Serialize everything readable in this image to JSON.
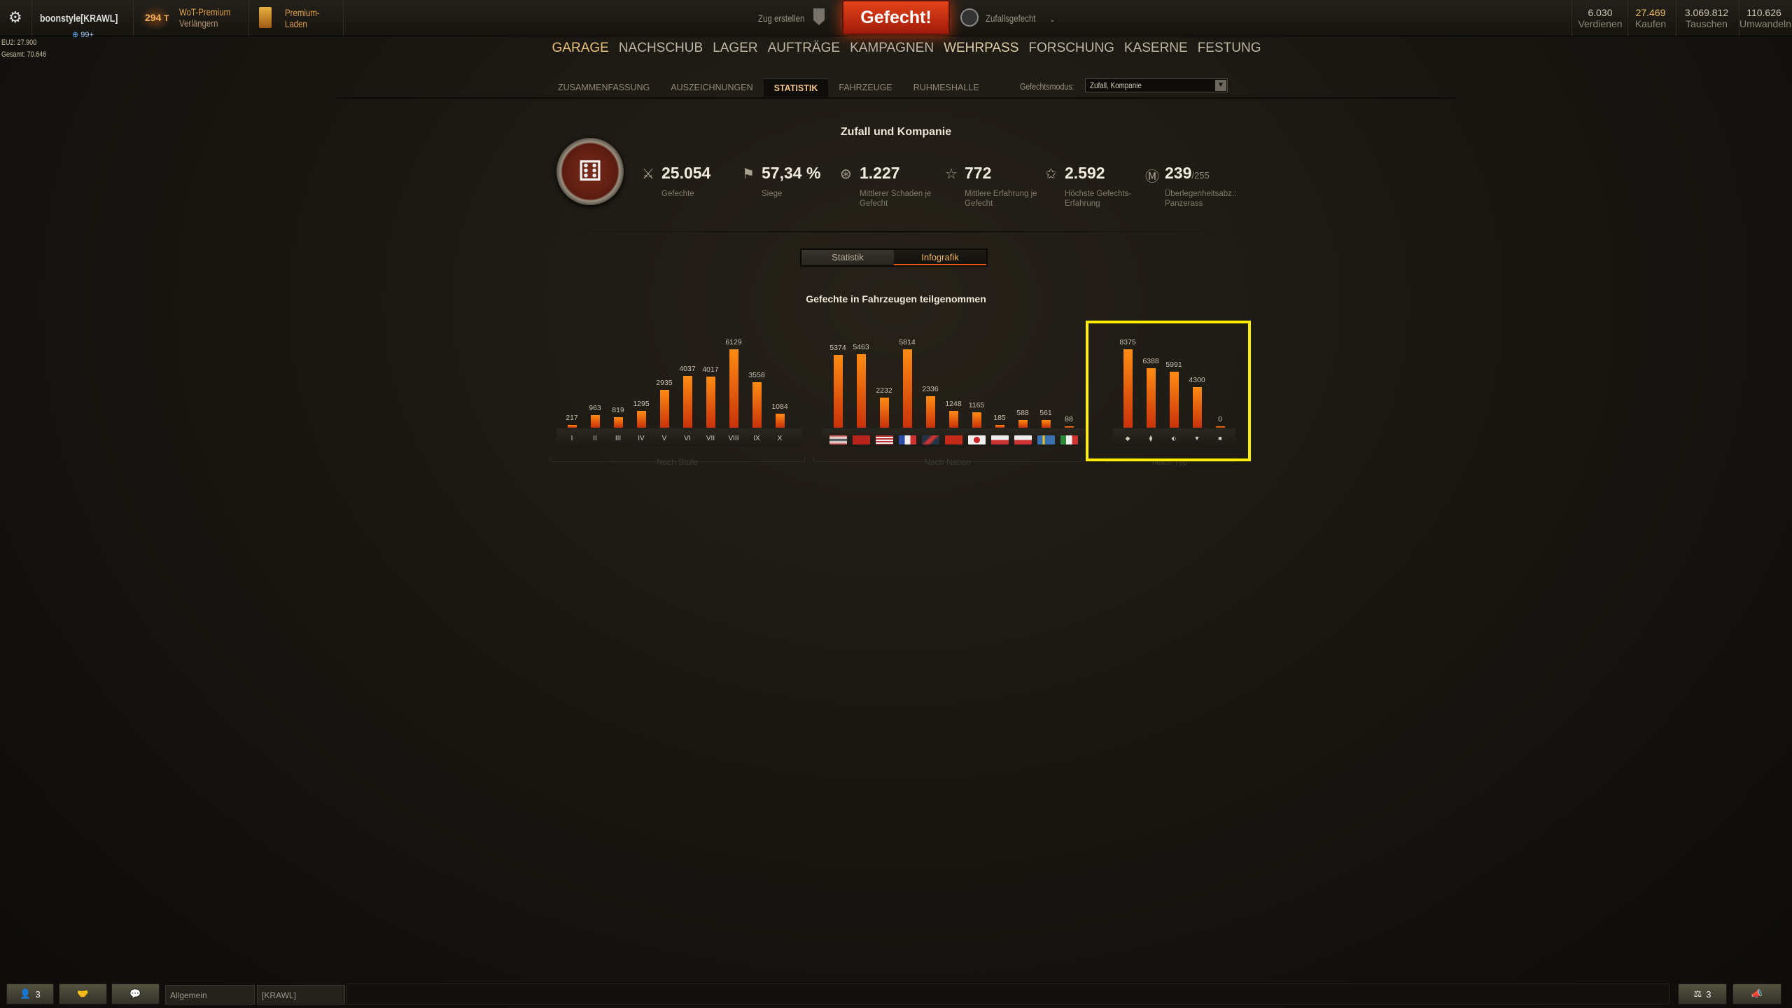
{
  "topbar": {
    "username": "boonstyle[KRAWL]",
    "invites": "99+",
    "premium_days": "294",
    "premium_unit": "T",
    "premium_label": "WoT-Premium",
    "premium_action": "Verlängern",
    "shop_label_1": "Premium-",
    "shop_label_2": "Laden",
    "platoon": "Zug erstellen",
    "battle_button": "Gefecht!",
    "battle_mode": "Zufallsgefecht",
    "currencies": [
      {
        "value": "6.030",
        "label": "Verdienen",
        "color": "#cfc8b4"
      },
      {
        "value": "27.469",
        "label": "Kaufen",
        "color": "#f0c060"
      },
      {
        "value": "3.069.812",
        "label": "Tauschen",
        "color": "#cfc8b4"
      },
      {
        "value": "110.626",
        "label": "Umwandeln",
        "color": "#cfc8b4"
      }
    ]
  },
  "server": {
    "line1": "EU2: 27.900",
    "line2": "Gesamt: 70.646"
  },
  "nav": [
    "GARAGE",
    "NACHSCHUB",
    "LAGER",
    "AUFTRÄGE",
    "KAMPAGNEN",
    "WEHRPASS",
    "FORSCHUNG",
    "KASERNE",
    "FESTUNG"
  ],
  "subtabs": [
    "ZUSAMMENFASSUNG",
    "AUSZEICHNUNGEN",
    "STATISTIK",
    "FAHRZEUGE",
    "RUHMESHALLE"
  ],
  "mode": {
    "label": "Gefechtsmodus:",
    "value": "Zufall, Kompanie"
  },
  "summary": {
    "title": "Zufall und Kompanie",
    "stats": [
      {
        "icon": "crossed-swords-icon",
        "value": "25.054",
        "label": "Gefechte"
      },
      {
        "icon": "flag-icon",
        "value": "57,34 %",
        "label": "Siege"
      },
      {
        "icon": "shell-icon",
        "value": "1.227",
        "label": "Mittlerer Schaden je Gefecht"
      },
      {
        "icon": "star-icon",
        "value": "772",
        "label": "Mittlere Erfahrung je Gefecht"
      },
      {
        "icon": "star-badge-icon",
        "value": "2.592",
        "label": "Höchste Gefechts-Erfahrung"
      },
      {
        "icon": "mastery-icon",
        "value": "239",
        "sub": "/255",
        "label": "Überlegenheitsabz.: Panzerass"
      }
    ]
  },
  "toggle": {
    "left": "Statistik",
    "right": "Infografik"
  },
  "chart_data": [
    {
      "type": "bar",
      "title": "Gefechte in Fahrzeugen teilgenommen",
      "xlabel": "Nach Stufe",
      "categories": [
        "I",
        "II",
        "III",
        "IV",
        "V",
        "VI",
        "VII",
        "VIII",
        "IX",
        "X"
      ],
      "values": [
        217,
        963,
        819,
        1295,
        2935,
        4037,
        4017,
        6129,
        3558,
        1084
      ]
    },
    {
      "type": "bar",
      "xlabel": "Nach Nation",
      "categories": [
        "germany",
        "ussr",
        "usa",
        "france",
        "uk",
        "china",
        "japan",
        "czech",
        "poland",
        "sweden",
        "italy"
      ],
      "values": [
        5374,
        5463,
        2232,
        5814,
        2336,
        1248,
        1165,
        185,
        588,
        561,
        88
      ]
    },
    {
      "type": "bar",
      "xlabel": "Nach Typ",
      "categories": [
        "light-tank",
        "medium-tank",
        "heavy-tank",
        "tank-destroyer",
        "spg"
      ],
      "values": [
        8375,
        6388,
        5991,
        4300,
        0
      ]
    }
  ],
  "flags": {
    "germany": "linear-gradient(#c44,#eee 30%,#222 50%,#eee 70%,#c44)",
    "ussr": "#b8241c",
    "usa": "repeating-linear-gradient(#b33 0 2px,#eee 2px 4px)",
    "france": "linear-gradient(90deg,#2a4aa8 33%,#eee 33% 66%,#c33 66%)",
    "uk": "linear-gradient(135deg,#234 30%,#c33 45% 55%,#234 70%)",
    "china": "#c32a1a",
    "japan": "radial-gradient(circle,#c22 30%,#eee 33%)",
    "czech": "linear-gradient(#eee 50%,#c33 50%)",
    "poland": "linear-gradient(#eee 50%,#c33 50%)",
    "sweden": "linear-gradient(90deg,#3a6fb0 30%,#e8c020 30% 42%,#3a6fb0 42%)",
    "italy": "linear-gradient(90deg,#2a8a3a 33%,#eee 33% 66%,#c33 66%)"
  },
  "type_icons": [
    "◆",
    "⧫",
    "⬖",
    "▼",
    "■"
  ],
  "bottom": {
    "players": "3",
    "channel1": "Allgemein",
    "channel2": "[KRAWL]",
    "compare": "3"
  }
}
